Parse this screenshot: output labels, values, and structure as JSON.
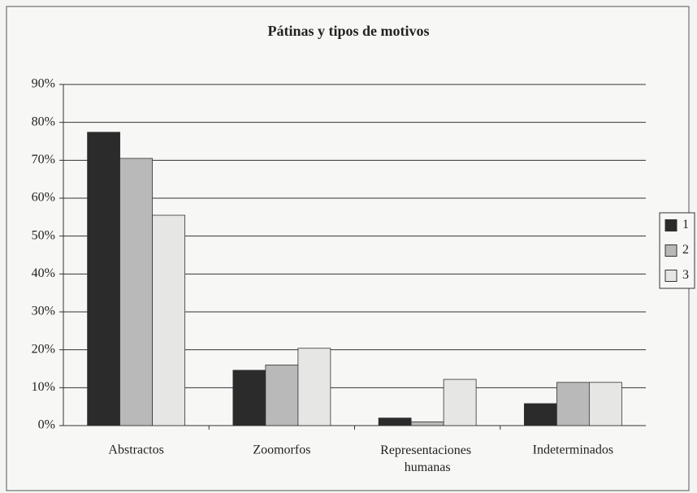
{
  "chart_data": {
    "type": "bar",
    "title": "Pátinas y tipos de motivos",
    "categories": [
      "Abstractos",
      "Zoomorfos",
      "Representaciones humanas",
      "Indeterminados"
    ],
    "series": [
      {
        "name": "1",
        "color": "#2b2b2b",
        "values": [
          77.4,
          14.6,
          2,
          5.8
        ]
      },
      {
        "name": "2",
        "color": "#b9b9b9",
        "values": [
          70.5,
          16,
          1,
          11.4
        ]
      },
      {
        "name": "3",
        "color": "#e6e6e4",
        "values": [
          55.5,
          20.4,
          12.2,
          11.4
        ]
      }
    ],
    "ylim": [
      0,
      90
    ],
    "yticks": [
      {
        "value": 0,
        "label": "0%"
      },
      {
        "value": 10,
        "label": "10%"
      },
      {
        "value": 20,
        "label": "20%"
      },
      {
        "value": 30,
        "label": "30%"
      },
      {
        "value": 40,
        "label": "40%"
      },
      {
        "value": 50,
        "label": "50%"
      },
      {
        "value": 60,
        "label": "60%"
      },
      {
        "value": 70,
        "label": "70%"
      },
      {
        "value": 80,
        "label": "80%"
      },
      {
        "value": 90,
        "label": "90%"
      }
    ],
    "grid": true,
    "legend": "right"
  }
}
